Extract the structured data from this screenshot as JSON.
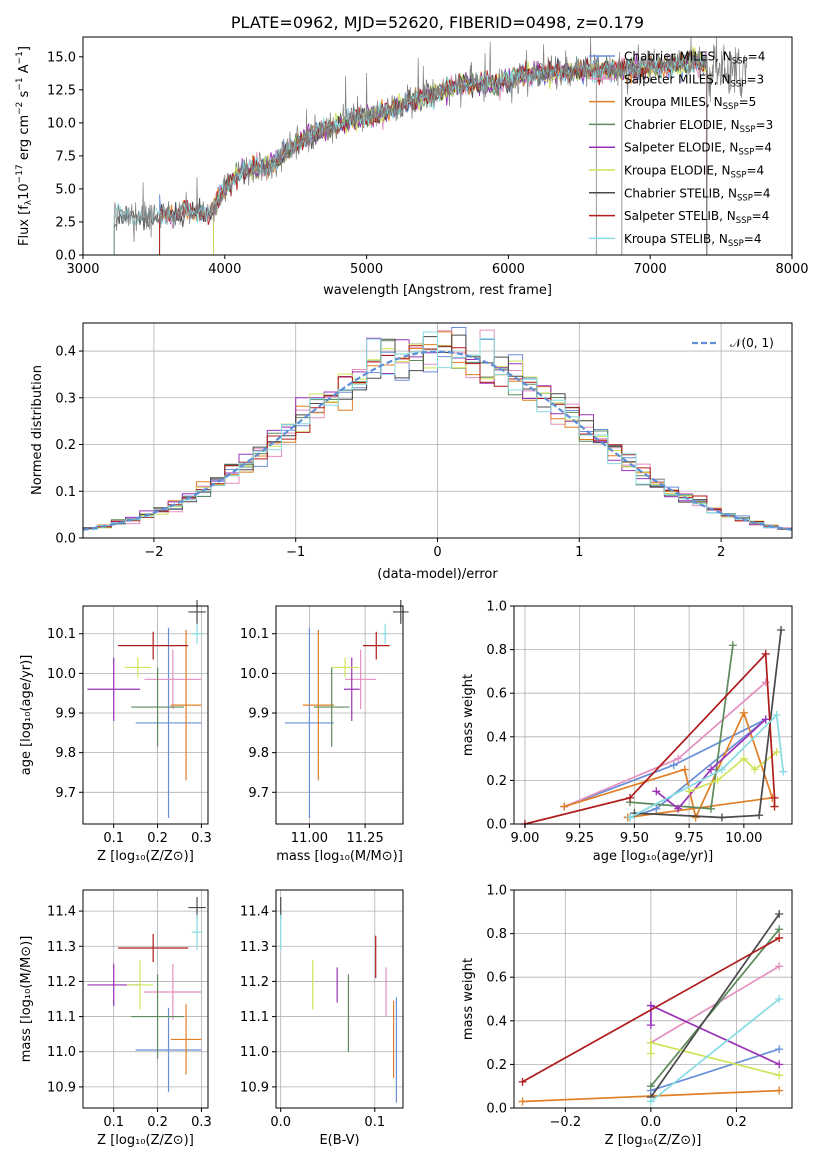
{
  "palette": {
    "Chabrier MILES": "#6a8fd8",
    "Salpeter MILES": "#e48fc0",
    "Kroupa MILES": "#e07f25",
    "Chabrier ELODIE": "#5c8a5c",
    "Salpeter ELODIE": "#9a32b8",
    "Kroupa ELODIE": "#cfe35a",
    "Chabrier STELIB": "#4a4a4a",
    "Salpeter STELIB": "#b01c1c",
    "Kroupa STELIB": "#86dce2"
  },
  "chart_data": [
    {
      "id": "spectrum",
      "type": "line",
      "title": "PLATE=0962, MJD=52620, FIBERID=0498, z=0.179",
      "xlabel": "wavelength [Angstrom, rest frame]",
      "ylabel": "Flux [fλ10⁻¹⁷ erg cm⁻² s⁻¹ A⁻¹]",
      "xlim": [
        3000,
        8000
      ],
      "ylim": [
        0,
        16.5
      ],
      "xticks": [
        3000,
        4000,
        5000,
        6000,
        7000,
        8000
      ],
      "yticks": [
        0.0,
        2.5,
        5.0,
        7.5,
        10.0,
        12.5,
        15.0
      ],
      "grid": false,
      "legend_position": "top-right",
      "legend": [
        {
          "model": "Chabrier MILES",
          "label": "Chabrier MILES, N",
          "sub": "SSP",
          "tail": "=4"
        },
        {
          "model": "Salpeter MILES",
          "label": "Salpeter MILES, N",
          "sub": "SSP",
          "tail": "=3"
        },
        {
          "model": "Kroupa MILES",
          "label": "Kroupa MILES, N",
          "sub": "SSP",
          "tail": "=5"
        },
        {
          "model": "Chabrier ELODIE",
          "label": "Chabrier ELODIE, N",
          "sub": "SSP",
          "tail": "=3"
        },
        {
          "model": "Salpeter ELODIE",
          "label": "Salpeter ELODIE, N",
          "sub": "SSP",
          "tail": "=4"
        },
        {
          "model": "Kroupa ELODIE",
          "label": "Kroupa ELODIE, N",
          "sub": "SSP",
          "tail": "=4"
        },
        {
          "model": "Chabrier STELIB",
          "label": "Chabrier STELIB, N",
          "sub": "SSP",
          "tail": "=4"
        },
        {
          "model": "Salpeter STELIB",
          "label": "Salpeter STELIB, N",
          "sub": "SSP",
          "tail": "=4"
        },
        {
          "model": "Kroupa STELIB",
          "label": "Kroupa STELIB, N",
          "sub": "SSP",
          "tail": "=4"
        }
      ],
      "data_trend": {
        "x": [
          3200,
          3500,
          3700,
          3900,
          4000,
          4100,
          4300,
          4500,
          4700,
          4900,
          5100,
          5300,
          5500,
          5700,
          5900,
          6100,
          6300,
          6500,
          6700,
          6900,
          7100,
          7300,
          7400
        ],
        "y": [
          2.8,
          2.9,
          3.3,
          3.2,
          5.0,
          6.3,
          6.6,
          8.4,
          9.5,
          10.2,
          10.6,
          11.6,
          12.3,
          13.0,
          12.9,
          13.6,
          13.8,
          14.0,
          14.0,
          14.1,
          14.3,
          14.6,
          14.5
        ]
      },
      "model_start_wavelength": {
        "Chabrier MILES": 3540,
        "Salpeter MILES": 3540,
        "Kroupa MILES": 3540,
        "Chabrier ELODIE": 3920,
        "Salpeter ELODIE": 3920,
        "Kroupa ELODIE": 3920,
        "Chabrier STELIB": 3220,
        "Salpeter STELIB": 3540,
        "Kroupa STELIB": 3220
      }
    },
    {
      "id": "residuals",
      "type": "histogram",
      "xlabel": "(data-model)/error",
      "ylabel": "Normed distribution",
      "xlim": [
        -2.5,
        2.5
      ],
      "ylim": [
        0,
        0.46
      ],
      "xticks": [
        -2,
        -1,
        0,
        1,
        2
      ],
      "yticks": [
        0.0,
        0.1,
        0.2,
        0.3,
        0.4
      ],
      "grid": true,
      "legend_position": "top-right",
      "reference_curve": {
        "label": "𝒩(0, 1)",
        "mean": 0,
        "sigma": 1
      },
      "bin_width": 0.1
    },
    {
      "id": "age-vs-Z",
      "type": "errorbar",
      "xlabel": "Z [log₁₀(Z/Z⊙)]",
      "ylabel": "age  [log₁₀(age/yr)]",
      "xlim": [
        0.03,
        0.315
      ],
      "ylim": [
        9.62,
        10.17
      ],
      "xticks": [
        0.1,
        0.2,
        0.3
      ],
      "yticks": [
        9.7,
        9.8,
        9.9,
        10.0,
        10.1
      ],
      "grid": true,
      "points": [
        {
          "model": "Chabrier MILES",
          "x": 0.225,
          "y": 9.875,
          "xerr": 0.075,
          "yerr": 0.24
        },
        {
          "model": "Salpeter MILES",
          "x": 0.235,
          "y": 9.985,
          "xerr": 0.065,
          "yerr": 0.075
        },
        {
          "model": "Kroupa MILES",
          "x": 0.265,
          "y": 9.92,
          "xerr": 0.035,
          "yerr": 0.19
        },
        {
          "model": "Chabrier ELODIE",
          "x": 0.2,
          "y": 9.915,
          "xerr": 0.06,
          "yerr": 0.1
        },
        {
          "model": "Salpeter ELODIE",
          "x": 0.1,
          "y": 9.96,
          "xerr": 0.06,
          "yerr": 0.08
        },
        {
          "model": "Kroupa ELODIE",
          "x": 0.155,
          "y": 10.015,
          "xerr": 0.03,
          "yerr": 0.025
        },
        {
          "model": "Chabrier STELIB",
          "x": 0.29,
          "y": 10.155,
          "xerr": 0.02,
          "yerr": 0.03
        },
        {
          "model": "Salpeter STELIB",
          "x": 0.19,
          "y": 10.07,
          "xerr": 0.08,
          "yerr": 0.035
        },
        {
          "model": "Kroupa STELIB",
          "x": 0.29,
          "y": 10.1,
          "xerr": 0.012,
          "yerr": 0.025
        }
      ]
    },
    {
      "id": "age-vs-mass",
      "type": "errorbar",
      "xlabel": "mass [log₁₀(M/M⊙)]",
      "ylabel": "",
      "xlim": [
        10.85,
        11.42
      ],
      "ylim": [
        9.62,
        10.17
      ],
      "xticks": [
        11.0,
        11.25
      ],
      "yticks": [
        9.7,
        9.8,
        9.9,
        10.0,
        10.1
      ],
      "grid": true,
      "points": [
        {
          "model": "Chabrier MILES",
          "x": 11.0,
          "y": 9.875,
          "xerr": 0.11,
          "yerr": 0.24
        },
        {
          "model": "Salpeter MILES",
          "x": 11.23,
          "y": 9.985,
          "xerr": 0.07,
          "yerr": 0.075
        },
        {
          "model": "Kroupa MILES",
          "x": 11.04,
          "y": 9.92,
          "xerr": 0.07,
          "yerr": 0.19
        },
        {
          "model": "Chabrier ELODIE",
          "x": 11.1,
          "y": 9.915,
          "xerr": 0.08,
          "yerr": 0.1
        },
        {
          "model": "Salpeter ELODIE",
          "x": 11.19,
          "y": 9.96,
          "xerr": 0.035,
          "yerr": 0.08
        },
        {
          "model": "Kroupa ELODIE",
          "x": 11.16,
          "y": 10.015,
          "xerr": 0.06,
          "yerr": 0.025
        },
        {
          "model": "Chabrier STELIB",
          "x": 11.41,
          "y": 10.155,
          "xerr": 0.035,
          "yerr": 0.03
        },
        {
          "model": "Salpeter STELIB",
          "x": 11.3,
          "y": 10.07,
          "xerr": 0.06,
          "yerr": 0.035
        },
        {
          "model": "Kroupa STELIB",
          "x": 11.34,
          "y": 10.1,
          "xerr": 0.012,
          "yerr": 0.025
        }
      ]
    },
    {
      "id": "weight-vs-age",
      "type": "line",
      "xlabel": "age  [log₁₀(age/yr)]",
      "ylabel": "mass weight",
      "xlim": [
        8.95,
        10.22
      ],
      "ylim": [
        0,
        1
      ],
      "xticks": [
        9.0,
        9.25,
        9.5,
        9.75,
        10.0
      ],
      "yticks": [
        0.0,
        0.2,
        0.4,
        0.6,
        0.8,
        1.0
      ],
      "grid": true,
      "series": [
        {
          "model": "Chabrier MILES",
          "x": [
            9.18,
            9.68,
            10.1,
            9.6,
            9.48
          ],
          "y": [
            0.08,
            0.27,
            0.48,
            0.07,
            0.03
          ]
        },
        {
          "model": "Salpeter MILES",
          "x": [
            9.18,
            9.7,
            10.1
          ],
          "y": [
            0.08,
            0.3,
            0.65
          ]
        },
        {
          "model": "Kroupa MILES",
          "x": [
            9.18,
            9.73,
            9.78,
            10.0,
            10.13,
            9.47,
            9.47
          ],
          "y": [
            0.08,
            0.25,
            0.03,
            0.51,
            0.12,
            0.03,
            0.03
          ]
        },
        {
          "model": "Chabrier ELODIE",
          "x": [
            9.48,
            9.85,
            9.95
          ],
          "y": [
            0.1,
            0.07,
            0.82
          ]
        },
        {
          "model": "Salpeter ELODIE",
          "x": [
            9.6,
            9.7,
            9.85,
            10.1
          ],
          "y": [
            0.15,
            0.07,
            0.25,
            0.48
          ]
        },
        {
          "model": "Kroupa ELODIE",
          "x": [
            9.75,
            9.88,
            10.0,
            10.05,
            10.15
          ],
          "y": [
            0.15,
            0.2,
            0.3,
            0.25,
            0.33
          ]
        },
        {
          "model": "Chabrier STELIB",
          "x": [
            9.5,
            9.9,
            10.07,
            10.17
          ],
          "y": [
            0.05,
            0.03,
            0.04,
            0.89
          ]
        },
        {
          "model": "Salpeter STELIB",
          "x": [
            9.0,
            9.48,
            10.1,
            10.14,
            10.14
          ],
          "y": [
            0.0,
            0.12,
            0.78,
            0.12,
            0.08
          ]
        },
        {
          "model": "Kroupa STELIB",
          "x": [
            9.48,
            9.9,
            10.15,
            10.18
          ],
          "y": [
            0.03,
            0.25,
            0.5,
            0.24
          ]
        }
      ]
    },
    {
      "id": "mass-vs-Z",
      "type": "errorbar",
      "xlabel": "Z [log₁₀(Z/Z⊙)]",
      "ylabel": "mass [log₁₀(M/M⊙)]",
      "xlim": [
        0.03,
        0.315
      ],
      "ylim": [
        10.84,
        11.46
      ],
      "xticks": [
        0.1,
        0.2,
        0.3
      ],
      "yticks": [
        10.9,
        11.0,
        11.1,
        11.2,
        11.3,
        11.4
      ],
      "grid": true,
      "points": [
        {
          "model": "Chabrier MILES",
          "x": 0.225,
          "y": 11.005,
          "xerr": 0.075,
          "yerr": 0.12
        },
        {
          "model": "Salpeter MILES",
          "x": 0.235,
          "y": 11.17,
          "xerr": 0.065,
          "yerr": 0.08
        },
        {
          "model": "Kroupa MILES",
          "x": 0.265,
          "y": 11.035,
          "xerr": 0.035,
          "yerr": 0.1
        },
        {
          "model": "Chabrier ELODIE",
          "x": 0.2,
          "y": 11.1,
          "xerr": 0.06,
          "yerr": 0.12
        },
        {
          "model": "Salpeter ELODIE",
          "x": 0.1,
          "y": 11.19,
          "xerr": 0.06,
          "yerr": 0.06
        },
        {
          "model": "Kroupa ELODIE",
          "x": 0.16,
          "y": 11.19,
          "xerr": 0.03,
          "yerr": 0.07
        },
        {
          "model": "Chabrier STELIB",
          "x": 0.29,
          "y": 11.41,
          "xerr": 0.02,
          "yerr": 0.03
        },
        {
          "model": "Salpeter STELIB",
          "x": 0.19,
          "y": 11.295,
          "xerr": 0.08,
          "yerr": 0.04
        },
        {
          "model": "Kroupa STELIB",
          "x": 0.29,
          "y": 11.34,
          "xerr": 0.012,
          "yerr": 0.05
        }
      ]
    },
    {
      "id": "mass-vs-ebv",
      "type": "errorbar",
      "xlabel": "E(B-V)",
      "ylabel": "",
      "xlim": [
        -0.005,
        0.13
      ],
      "ylim": [
        10.84,
        11.46
      ],
      "xticks": [
        0.0,
        0.1
      ],
      "yticks": [
        10.9,
        11.0,
        11.1,
        11.2,
        11.3,
        11.4
      ],
      "grid": true,
      "points": [
        {
          "model": "Chabrier MILES",
          "x": 0.123,
          "y": 11.005,
          "xerr": 0.0,
          "yerr": 0.15
        },
        {
          "model": "Salpeter MILES",
          "x": 0.112,
          "y": 11.17,
          "xerr": 0.0,
          "yerr": 0.07
        },
        {
          "model": "Kroupa MILES",
          "x": 0.12,
          "y": 11.035,
          "xerr": 0.0,
          "yerr": 0.11
        },
        {
          "model": "Chabrier ELODIE",
          "x": 0.072,
          "y": 11.11,
          "xerr": 0.0,
          "yerr": 0.11
        },
        {
          "model": "Salpeter ELODIE",
          "x": 0.06,
          "y": 11.19,
          "xerr": 0.0,
          "yerr": 0.05
        },
        {
          "model": "Kroupa ELODIE",
          "x": 0.034,
          "y": 11.19,
          "xerr": 0.0,
          "yerr": 0.07
        },
        {
          "model": "Chabrier STELIB",
          "x": 0.0,
          "y": 11.41,
          "xerr": 0.0,
          "yerr": 0.03
        },
        {
          "model": "Salpeter STELIB",
          "x": 0.101,
          "y": 11.27,
          "xerr": 0.0,
          "yerr": 0.06
        },
        {
          "model": "Kroupa STELIB",
          "x": 0.0,
          "y": 11.34,
          "xerr": 0.0,
          "yerr": 0.05
        }
      ]
    },
    {
      "id": "weight-vs-Z",
      "type": "line",
      "xlabel": "Z [log₁₀(Z/Z⊙)]",
      "ylabel": "mass weight",
      "xlim": [
        -0.32,
        0.33
      ],
      "ylim": [
        0,
        1
      ],
      "xticks": [
        -0.2,
        0.0,
        0.2
      ],
      "yticks": [
        0.0,
        0.2,
        0.4,
        0.6,
        0.8,
        1.0
      ],
      "grid": true,
      "series": [
        {
          "model": "Chabrier MILES",
          "x": [
            0.0,
            0.3
          ],
          "y": [
            0.08,
            0.27
          ]
        },
        {
          "model": "Salpeter MILES",
          "x": [
            0.0,
            0.3
          ],
          "y": [
            0.3,
            0.65
          ]
        },
        {
          "model": "Kroupa MILES",
          "x": [
            -0.3,
            0.3
          ],
          "y": [
            0.03,
            0.08
          ]
        },
        {
          "model": "Chabrier ELODIE",
          "x": [
            0.0,
            0.3
          ],
          "y": [
            0.1,
            0.82
          ]
        },
        {
          "model": "Salpeter ELODIE",
          "x": [
            0.0,
            0.0,
            0.3
          ],
          "y": [
            0.38,
            0.47,
            0.2
          ]
        },
        {
          "model": "Kroupa ELODIE",
          "x": [
            0.0,
            0.0,
            0.3
          ],
          "y": [
            0.25,
            0.3,
            0.15
          ]
        },
        {
          "model": "Chabrier STELIB",
          "x": [
            0.0,
            0.3
          ],
          "y": [
            0.05,
            0.89
          ]
        },
        {
          "model": "Salpeter STELIB",
          "x": [
            -0.3,
            0.3
          ],
          "y": [
            0.12,
            0.78
          ]
        },
        {
          "model": "Kroupa STELIB",
          "x": [
            0.0,
            0.3
          ],
          "y": [
            0.03,
            0.5
          ]
        }
      ]
    }
  ]
}
